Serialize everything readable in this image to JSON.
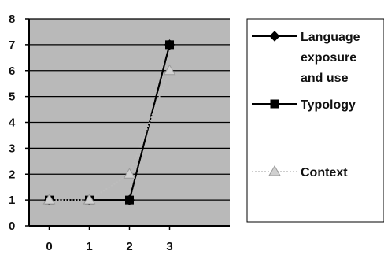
{
  "chart_data": {
    "type": "line",
    "title": "",
    "xlabel": "",
    "ylabel": "",
    "x": [
      0,
      1,
      2,
      3
    ],
    "xlim": [
      -0.5,
      4.5
    ],
    "ylim": [
      0,
      8
    ],
    "yticks": [
      0,
      1,
      2,
      3,
      4,
      5,
      6,
      7,
      8
    ],
    "grid": true,
    "legend_position": "right",
    "plot_background": "#b9b9b9",
    "series": [
      {
        "name": "Language exposure and use",
        "values": [
          1,
          1,
          1,
          7
        ],
        "color": "#000000",
        "marker": "diamond",
        "style": "solid"
      },
      {
        "name": "Typology",
        "values": [
          1,
          1,
          1,
          7
        ],
        "color": "#000000",
        "marker": "square",
        "style": "solid"
      },
      {
        "name": "Context",
        "values": [
          1,
          1,
          2,
          6
        ],
        "color": "#bdbdbd",
        "marker": "triangle",
        "style": "dotted"
      }
    ]
  }
}
